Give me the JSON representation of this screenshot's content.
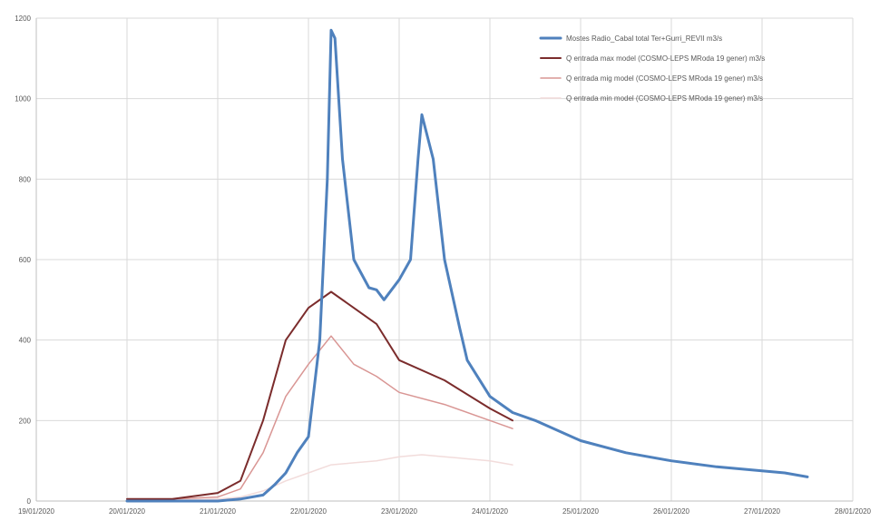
{
  "chart_data": {
    "type": "line",
    "title": "",
    "xlabel": "",
    "ylabel": "",
    "ylim": [
      0,
      1200
    ],
    "yticks": [
      0,
      200,
      400,
      600,
      800,
      1000,
      1200
    ],
    "ytick_labels": [
      "0",
      "200",
      "400",
      "600",
      "800",
      "1000",
      "1200"
    ],
    "xlim": [
      "19/01/2020",
      "28/01/2020"
    ],
    "xticks": [
      "19/01/2020",
      "20/01/2020",
      "21/01/2020",
      "22/01/2020",
      "23/01/2020",
      "24/01/2020",
      "25/01/2020",
      "26/01/2020",
      "27/01/2020",
      "28/01/2020"
    ],
    "xtick_labels": [
      "19/01/2020",
      "20/01/2020",
      "21/01/2020",
      "22/01/2020",
      "23/01/2020",
      "24/01/2020",
      "25/01/2020",
      "26/01/2020",
      "27/01/2020",
      "28/01/2020"
    ],
    "grid": true,
    "legend_position": "top-right",
    "series": [
      {
        "name": "Mostes Radio_Cabal total Ter+Gurri_REVII m3/s",
        "color": "#4f81bd",
        "width": 3,
        "x": [
          "20/01/2020 00:00",
          "20/01/2020 12:00",
          "21/01/2020 00:00",
          "21/01/2020 06:00",
          "21/01/2020 12:00",
          "21/01/2020 15:00",
          "21/01/2020 18:00",
          "21/01/2020 21:00",
          "22/01/2020 00:00",
          "22/01/2020 03:00",
          "22/01/2020 05:00",
          "22/01/2020 06:00",
          "22/01/2020 07:00",
          "22/01/2020 09:00",
          "22/01/2020 12:00",
          "22/01/2020 16:00",
          "22/01/2020 18:00",
          "22/01/2020 20:00",
          "23/01/2020 00:00",
          "23/01/2020 03:00",
          "23/01/2020 05:00",
          "23/01/2020 06:00",
          "23/01/2020 09:00",
          "23/01/2020 12:00",
          "23/01/2020 16:00",
          "23/01/2020 18:00",
          "24/01/2020 00:00",
          "24/01/2020 06:00",
          "24/01/2020 12:00",
          "25/01/2020 00:00",
          "25/01/2020 12:00",
          "26/01/2020 00:00",
          "26/01/2020 12:00",
          "27/01/2020 00:00",
          "27/01/2020 06:00",
          "27/01/2020 12:00"
        ],
        "values": [
          0,
          0,
          0,
          5,
          15,
          40,
          70,
          120,
          160,
          400,
          800,
          1170,
          1150,
          850,
          600,
          530,
          525,
          500,
          550,
          600,
          850,
          960,
          850,
          600,
          430,
          350,
          260,
          220,
          200,
          150,
          120,
          100,
          85,
          75,
          70,
          60
        ]
      },
      {
        "name": "Q entrada max model (COSMO-LEPS MRoda 19 gener) m3/s",
        "color": "#7b2c2c",
        "width": 2,
        "x": [
          "20/01/2020 00:00",
          "20/01/2020 12:00",
          "21/01/2020 00:00",
          "21/01/2020 06:00",
          "21/01/2020 12:00",
          "21/01/2020 18:00",
          "22/01/2020 00:00",
          "22/01/2020 06:00",
          "22/01/2020 12:00",
          "22/01/2020 18:00",
          "23/01/2020 00:00",
          "23/01/2020 12:00",
          "24/01/2020 00:00",
          "24/01/2020 06:00"
        ],
        "values": [
          5,
          5,
          20,
          50,
          200,
          400,
          480,
          520,
          480,
          440,
          350,
          300,
          230,
          200
        ]
      },
      {
        "name": "Q entrada mig model (COSMO-LEPS MRoda 19 gener) m3/s",
        "color": "#d99694",
        "width": 1.5,
        "x": [
          "20/01/2020 00:00",
          "20/01/2020 12:00",
          "21/01/2020 00:00",
          "21/01/2020 06:00",
          "21/01/2020 12:00",
          "21/01/2020 18:00",
          "22/01/2020 00:00",
          "22/01/2020 06:00",
          "22/01/2020 12:00",
          "22/01/2020 18:00",
          "23/01/2020 00:00",
          "23/01/2020 12:00",
          "24/01/2020 00:00",
          "24/01/2020 06:00"
        ],
        "values": [
          5,
          5,
          10,
          30,
          120,
          260,
          340,
          410,
          340,
          310,
          270,
          240,
          200,
          180
        ]
      },
      {
        "name": "Q entrada min model (COSMO-LEPS MRoda 19 gener) m3/s",
        "color": "#f2dcdb",
        "width": 1.5,
        "x": [
          "20/01/2020 00:00",
          "20/01/2020 12:00",
          "21/01/2020 00:00",
          "21/01/2020 06:00",
          "21/01/2020 12:00",
          "21/01/2020 18:00",
          "22/01/2020 00:00",
          "22/01/2020 06:00",
          "22/01/2020 12:00",
          "22/01/2020 18:00",
          "23/01/2020 00:00",
          "23/01/2020 06:00",
          "23/01/2020 12:00",
          "24/01/2020 00:00",
          "24/01/2020 06:00"
        ],
        "values": [
          2,
          2,
          5,
          10,
          25,
          50,
          70,
          90,
          95,
          100,
          110,
          115,
          110,
          100,
          90
        ]
      }
    ]
  }
}
